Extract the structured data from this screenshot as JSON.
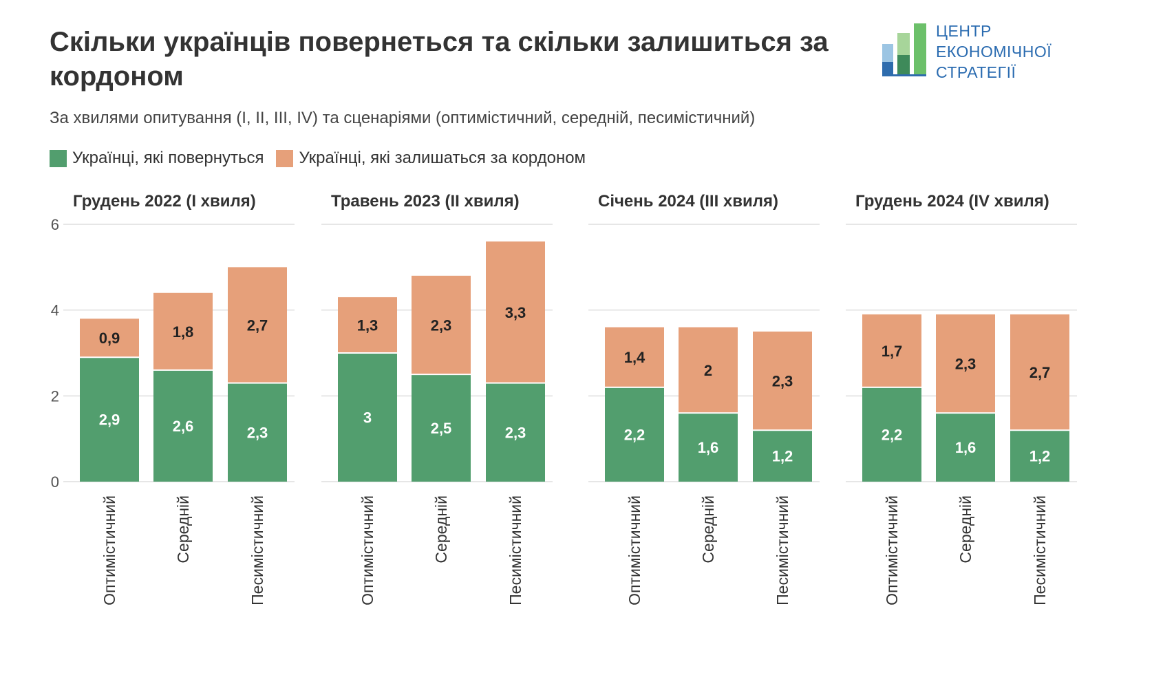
{
  "title": "Скільки українців повернеться та скільки залишиться за кордоном",
  "subtitle": "За хвилями опитування (I, II, III, IV) та сценаріями (оптимістичний, середній, песимістичний)",
  "logo": {
    "lines": [
      "ЦЕНТР",
      "ЕКОНОМІЧНОЇ",
      "СТРАТЕГІЇ"
    ]
  },
  "colors": {
    "return": "#529e6e",
    "stay": "#e6a07a",
    "grid": "#e6e6e6",
    "text": "#333333"
  },
  "legend": [
    {
      "label": "Українці, які повернуться",
      "color": "#529e6e"
    },
    {
      "label": "Українці, які залишаться за кордоном",
      "color": "#e6a07a"
    }
  ],
  "chart_data": {
    "type": "bar",
    "stacked": true,
    "ylim": [
      0,
      6
    ],
    "yticks": [
      "0",
      "2",
      "4",
      "6"
    ],
    "grid": true,
    "legend_position": "top-left",
    "categories": [
      "Оптимістичний",
      "Середній",
      "Песимістичний"
    ],
    "panels": [
      {
        "title": "Грудень 2022 (I хвиля)",
        "series": [
          {
            "name": "Українці, які повернуться",
            "values": [
              2.9,
              2.6,
              2.3
            ],
            "labels": [
              "2,9",
              "2,6",
              "2,3"
            ]
          },
          {
            "name": "Українці, які залишаться за кордоном",
            "values": [
              0.9,
              1.8,
              2.7
            ],
            "labels": [
              "0,9",
              "1,8",
              "2,7"
            ]
          }
        ]
      },
      {
        "title": "Травень 2023 (II хвиля)",
        "series": [
          {
            "name": "Українці, які повернуться",
            "values": [
              3.0,
              2.5,
              2.3
            ],
            "labels": [
              "3",
              "2,5",
              "2,3"
            ]
          },
          {
            "name": "Українці, які залишаться за кордоном",
            "values": [
              1.3,
              2.3,
              3.3
            ],
            "labels": [
              "1,3",
              "2,3",
              "3,3"
            ]
          }
        ]
      },
      {
        "title": "Січень 2024 (III хвиля)",
        "series": [
          {
            "name": "Українці, які повернуться",
            "values": [
              2.2,
              1.6,
              1.2
            ],
            "labels": [
              "2,2",
              "1,6",
              "1,2"
            ]
          },
          {
            "name": "Українці, які залишаться за кордоном",
            "values": [
              1.4,
              2.0,
              2.3
            ],
            "labels": [
              "1,4",
              "2",
              "2,3"
            ]
          }
        ]
      },
      {
        "title": "Грудень 2024 (IV хвиля)",
        "series": [
          {
            "name": "Українці, які повернуться",
            "values": [
              2.2,
              1.6,
              1.2
            ],
            "labels": [
              "2,2",
              "1,6",
              "1,2"
            ]
          },
          {
            "name": "Українці, які залишаться за кордоном",
            "values": [
              1.7,
              2.3,
              2.7
            ],
            "labels": [
              "1,7",
              "2,3",
              "2,7"
            ]
          }
        ]
      }
    ]
  }
}
